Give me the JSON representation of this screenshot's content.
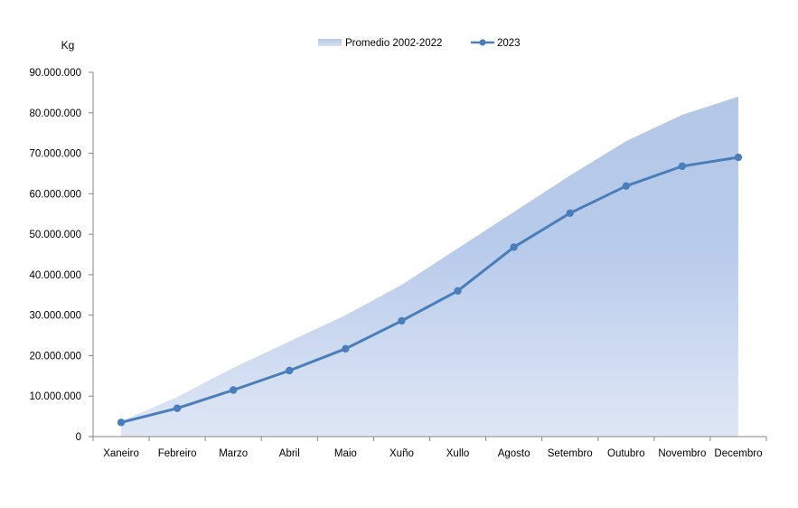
{
  "chart_data": {
    "type": "area",
    "ylabel": "Kg",
    "ylim": [
      0,
      90000000
    ],
    "ytick_labels": [
      "0",
      "10.000.000",
      "20.000.000",
      "30.000.000",
      "40.000.000",
      "50.000.000",
      "60.000.000",
      "70.000.000",
      "80.000.000",
      "90.000.000"
    ],
    "categories": [
      "Xaneiro",
      "Febreiro",
      "Marzo",
      "Abril",
      "Maio",
      "Xuño",
      "Xullo",
      "Agosto",
      "Setembro",
      "Outubro",
      "Novembro",
      "Decembro"
    ],
    "legend_position": "top-center",
    "grid": false,
    "series": [
      {
        "name": "Promedio 2002-2022",
        "kind": "area",
        "color": "#b4c7e7",
        "values": [
          3800000,
          9800000,
          17000000,
          23500000,
          30000000,
          37500000,
          46500000,
          55500000,
          64500000,
          73000000,
          79500000,
          84000000
        ]
      },
      {
        "name": "2023",
        "kind": "line",
        "color": "#4a7ebb",
        "values": [
          3500000,
          7000000,
          11500000,
          16300000,
          21700000,
          28600000,
          36000000,
          46800000,
          55200000,
          61900000,
          66800000,
          69000000
        ]
      }
    ]
  }
}
